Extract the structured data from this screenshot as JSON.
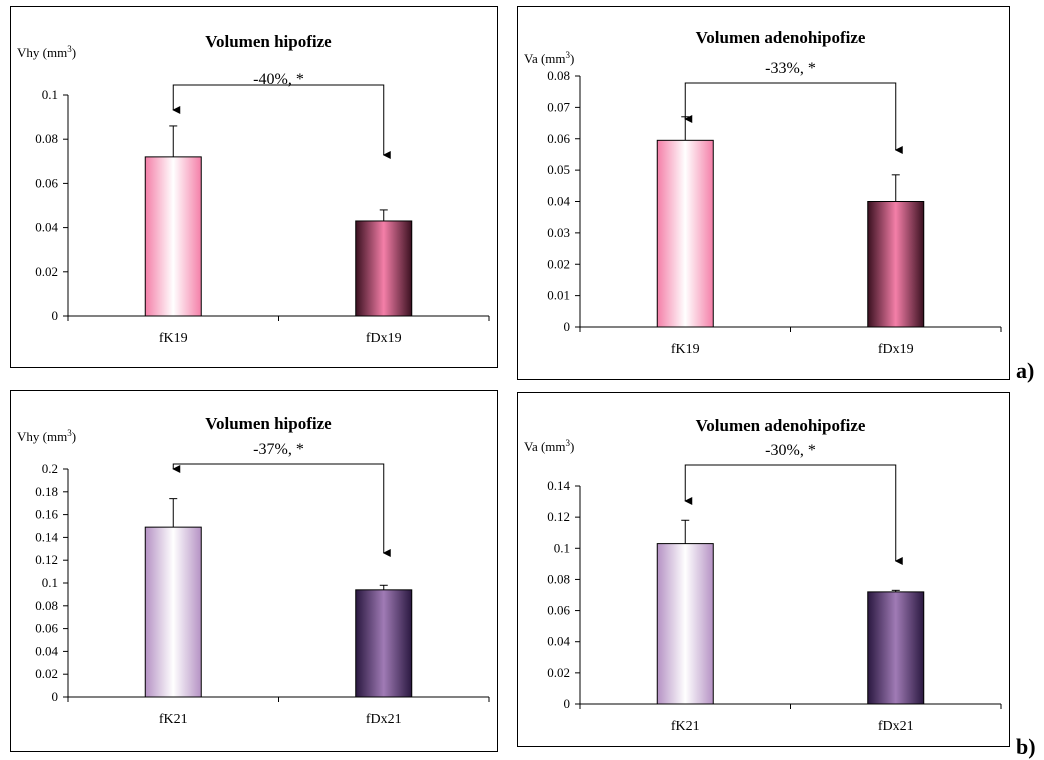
{
  "figure": {
    "panel_labels": [
      "a)",
      "b)"
    ]
  },
  "chart_data": [
    {
      "type": "bar",
      "title": "Volumen hipofize",
      "ylabel": "Vhy (mm",
      "ylabel_sup": "3",
      "ylabel_close": ")",
      "categories": [
        "fK19",
        "fDx19"
      ],
      "values": [
        0.072,
        0.043
      ],
      "errors": [
        0.014,
        0.005
      ],
      "ylim": [
        0,
        0.1
      ],
      "yticks": [
        0,
        0.02,
        0.04,
        0.06,
        0.08,
        0.1
      ],
      "ytick_labels": [
        "0",
        "0.02",
        "0.04",
        "0.06",
        "0.08",
        "0.1"
      ],
      "annotation": "-40%, *",
      "colors": [
        "#f47fa8",
        "#f47fa8"
      ],
      "color_dark": "#3a1020",
      "grid": false,
      "legend": "none"
    },
    {
      "type": "bar",
      "title": "Volumen adenohipofize",
      "ylabel": "Va (mm",
      "ylabel_sup": "3",
      "ylabel_close": ")",
      "categories": [
        "fK19",
        "fDx19"
      ],
      "values": [
        0.0595,
        0.04
      ],
      "errors": [
        0.0075,
        0.0085
      ],
      "ylim": [
        0,
        0.08
      ],
      "yticks": [
        0,
        0.01,
        0.02,
        0.03,
        0.04,
        0.05,
        0.06,
        0.07,
        0.08
      ],
      "ytick_labels": [
        "0",
        "0.01",
        "0.02",
        "0.03",
        "0.04",
        "0.05",
        "0.06",
        "0.07",
        "0.08"
      ],
      "annotation": "-33%, *",
      "colors": [
        "#f47fa8",
        "#f47fa8"
      ],
      "color_dark": "#3a1020",
      "grid": false,
      "legend": "none"
    },
    {
      "type": "bar",
      "title": "Volumen hipofize",
      "ylabel": "Vhy (mm",
      "ylabel_sup": "3",
      "ylabel_close": ")",
      "categories": [
        "fK21",
        "fDx21"
      ],
      "values": [
        0.149,
        0.094
      ],
      "errors": [
        0.025,
        0.004
      ],
      "ylim": [
        0,
        0.2
      ],
      "yticks": [
        0,
        0.02,
        0.04,
        0.06,
        0.08,
        0.1,
        0.12,
        0.14,
        0.16,
        0.18,
        0.2
      ],
      "ytick_labels": [
        "0",
        "0.02",
        "0.04",
        "0.06",
        "0.08",
        "0.1",
        "0.12",
        "0.14",
        "0.16",
        "0.18",
        "0.2"
      ],
      "annotation": "-37%, *",
      "colors": [
        "#b592c4",
        "#a07bb5"
      ],
      "color_dark": "#2a1840",
      "grid": false,
      "legend": "none"
    },
    {
      "type": "bar",
      "title": "Volumen adenohipofize",
      "ylabel": "Va (mm",
      "ylabel_sup": "3",
      "ylabel_close": ")",
      "categories": [
        "fK21",
        "fDx21"
      ],
      "values": [
        0.103,
        0.072
      ],
      "errors": [
        0.015,
        0.001
      ],
      "ylim": [
        0,
        0.14
      ],
      "yticks": [
        0,
        0.02,
        0.04,
        0.06,
        0.08,
        0.1,
        0.12,
        0.14
      ],
      "ytick_labels": [
        "0",
        "0.02",
        "0.04",
        "0.06",
        "0.08",
        "0.1",
        "0.12",
        "0.14"
      ],
      "annotation": "-30%, *",
      "colors": [
        "#b592c4",
        "#a07bb5"
      ],
      "color_dark": "#2a1840",
      "grid": false,
      "legend": "none"
    }
  ]
}
